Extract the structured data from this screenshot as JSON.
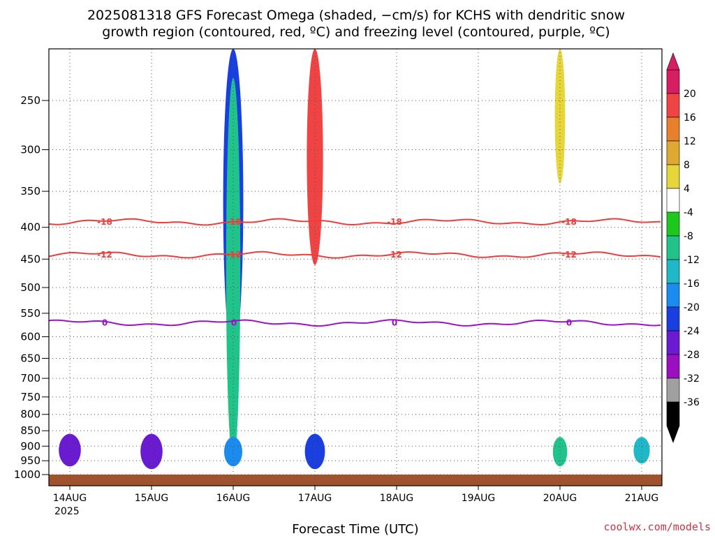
{
  "chart_data": {
    "type": "heatmap",
    "title_line1": "2025081318 GFS Forecast Omega (shaded, −cm/s) for KCHS with dendritic snow",
    "title_line2": "growth region (contoured, red, ºC) and freezing level (contoured, purple, ºC)",
    "xlabel": "Forecast Time (UTC)",
    "credit": "coolwx.com/models",
    "x_ticks": [
      "14AUG",
      "15AUG",
      "16AUG",
      "17AUG",
      "18AUG",
      "19AUG",
      "20AUG",
      "21AUG"
    ],
    "x_year": "2025",
    "y_axis": {
      "scale": "log-pressure",
      "range": [
        1000,
        200
      ],
      "ticks": [
        250,
        300,
        350,
        400,
        450,
        500,
        550,
        600,
        650,
        700,
        750,
        800,
        850,
        900,
        950,
        1000
      ]
    },
    "colorbar": {
      "labels": [
        20,
        16,
        12,
        8,
        4,
        -4,
        -8,
        -12,
        -16,
        -20,
        -24,
        -28,
        -32,
        -36
      ],
      "colors": [
        "#d81e63",
        "#f04444",
        "#e87f2a",
        "#e0a830",
        "#e6d63a",
        "#ffffff",
        "#1dc81d",
        "#20c48a",
        "#1fb8c8",
        "#1a8cf0",
        "#1a3fe0",
        "#6a1ad0",
        "#9a10c0",
        "#a0a0a0",
        "#000000"
      ]
    },
    "contours": [
      {
        "label": "-18",
        "color": "#ee3b3b",
        "pressure": 392
      },
      {
        "label": "-12",
        "color": "#ee3b3b",
        "pressure": 443
      },
      {
        "label": "0",
        "color": "#9b10c8",
        "pressure": 570
      }
    ],
    "shading": [
      {
        "x": "16AUG",
        "p_top": 200,
        "p_bottom": 640,
        "value": -24
      },
      {
        "x": "16AUG",
        "p_top": 230,
        "p_bottom": 950,
        "value": -12
      },
      {
        "x": "17AUG",
        "p_top": 200,
        "p_bottom": 460,
        "value": 16
      },
      {
        "x": "14AUG",
        "p_top": 860,
        "p_bottom": 970,
        "value": -28
      },
      {
        "x": "15AUG",
        "p_top": 860,
        "p_bottom": 980,
        "value": -28
      },
      {
        "x": "16AUG",
        "p_top": 870,
        "p_bottom": 970,
        "value": -20
      },
      {
        "x": "17AUG",
        "p_top": 860,
        "p_bottom": 980,
        "value": -24
      },
      {
        "x": "20AUG",
        "p_top": 870,
        "p_bottom": 970,
        "value": -12
      },
      {
        "x": "21AUG",
        "p_top": 870,
        "p_bottom": 960,
        "value": -16
      },
      {
        "x": "20AUG",
        "p_top": 200,
        "p_bottom": 340,
        "value": 4
      }
    ]
  }
}
